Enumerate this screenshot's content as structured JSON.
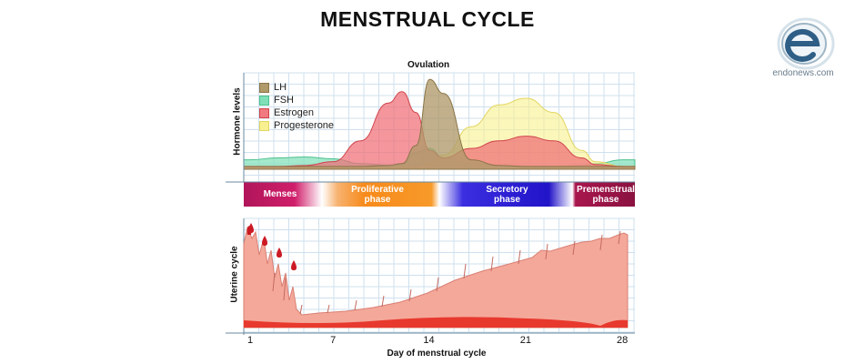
{
  "title": "MENSTRUAL CYCLE",
  "logo": {
    "text": "endonews.com",
    "icon": "e-letter-logo"
  },
  "ovulation_label": "Ovulation",
  "hormone_axis_label": "Hormone levels",
  "uterine_axis_label": "Uterine cycle",
  "legend": [
    {
      "name": "LH",
      "color": "#b09a6a"
    },
    {
      "name": "FSH",
      "color": "#7fe0b8"
    },
    {
      "name": "Estrogen",
      "color": "#f07a80"
    },
    {
      "name": "Progesterone",
      "color": "#f8f090"
    }
  ],
  "phases": [
    {
      "line1": "Menses",
      "line2": ""
    },
    {
      "line1": "Proliferative",
      "line2": "phase"
    },
    {
      "line1": "Secretory",
      "line2": "phase"
    },
    {
      "line1": "Premenstrual",
      "line2": "phase"
    }
  ],
  "x_axis": {
    "label": "Day of menstrual cycle",
    "ticks": [
      "1",
      "7",
      "14",
      "21",
      "28"
    ]
  },
  "chart_data": {
    "type": "area",
    "x": [
      1,
      3,
      5,
      7,
      9,
      11,
      12,
      13,
      14,
      15,
      17,
      19,
      21,
      23,
      25,
      26,
      28
    ],
    "series": [
      {
        "name": "LH",
        "values": [
          3,
          3,
          3,
          3,
          3,
          4,
          6,
          25,
          95,
          80,
          10,
          4,
          3,
          3,
          3,
          3,
          3
        ]
      },
      {
        "name": "FSH",
        "values": [
          10,
          12,
          13,
          11,
          6,
          4,
          5,
          18,
          22,
          12,
          6,
          4,
          3,
          3,
          4,
          6,
          10
        ]
      },
      {
        "name": "Estrogen",
        "values": [
          3,
          3,
          4,
          8,
          30,
          70,
          82,
          60,
          20,
          12,
          22,
          30,
          35,
          30,
          12,
          5,
          3
        ]
      },
      {
        "name": "Progesterone",
        "values": [
          2,
          2,
          2,
          2,
          2,
          2,
          2,
          3,
          6,
          15,
          45,
          68,
          75,
          60,
          20,
          8,
          3
        ]
      }
    ],
    "xlim": [
      1,
      28
    ],
    "grid": true
  }
}
